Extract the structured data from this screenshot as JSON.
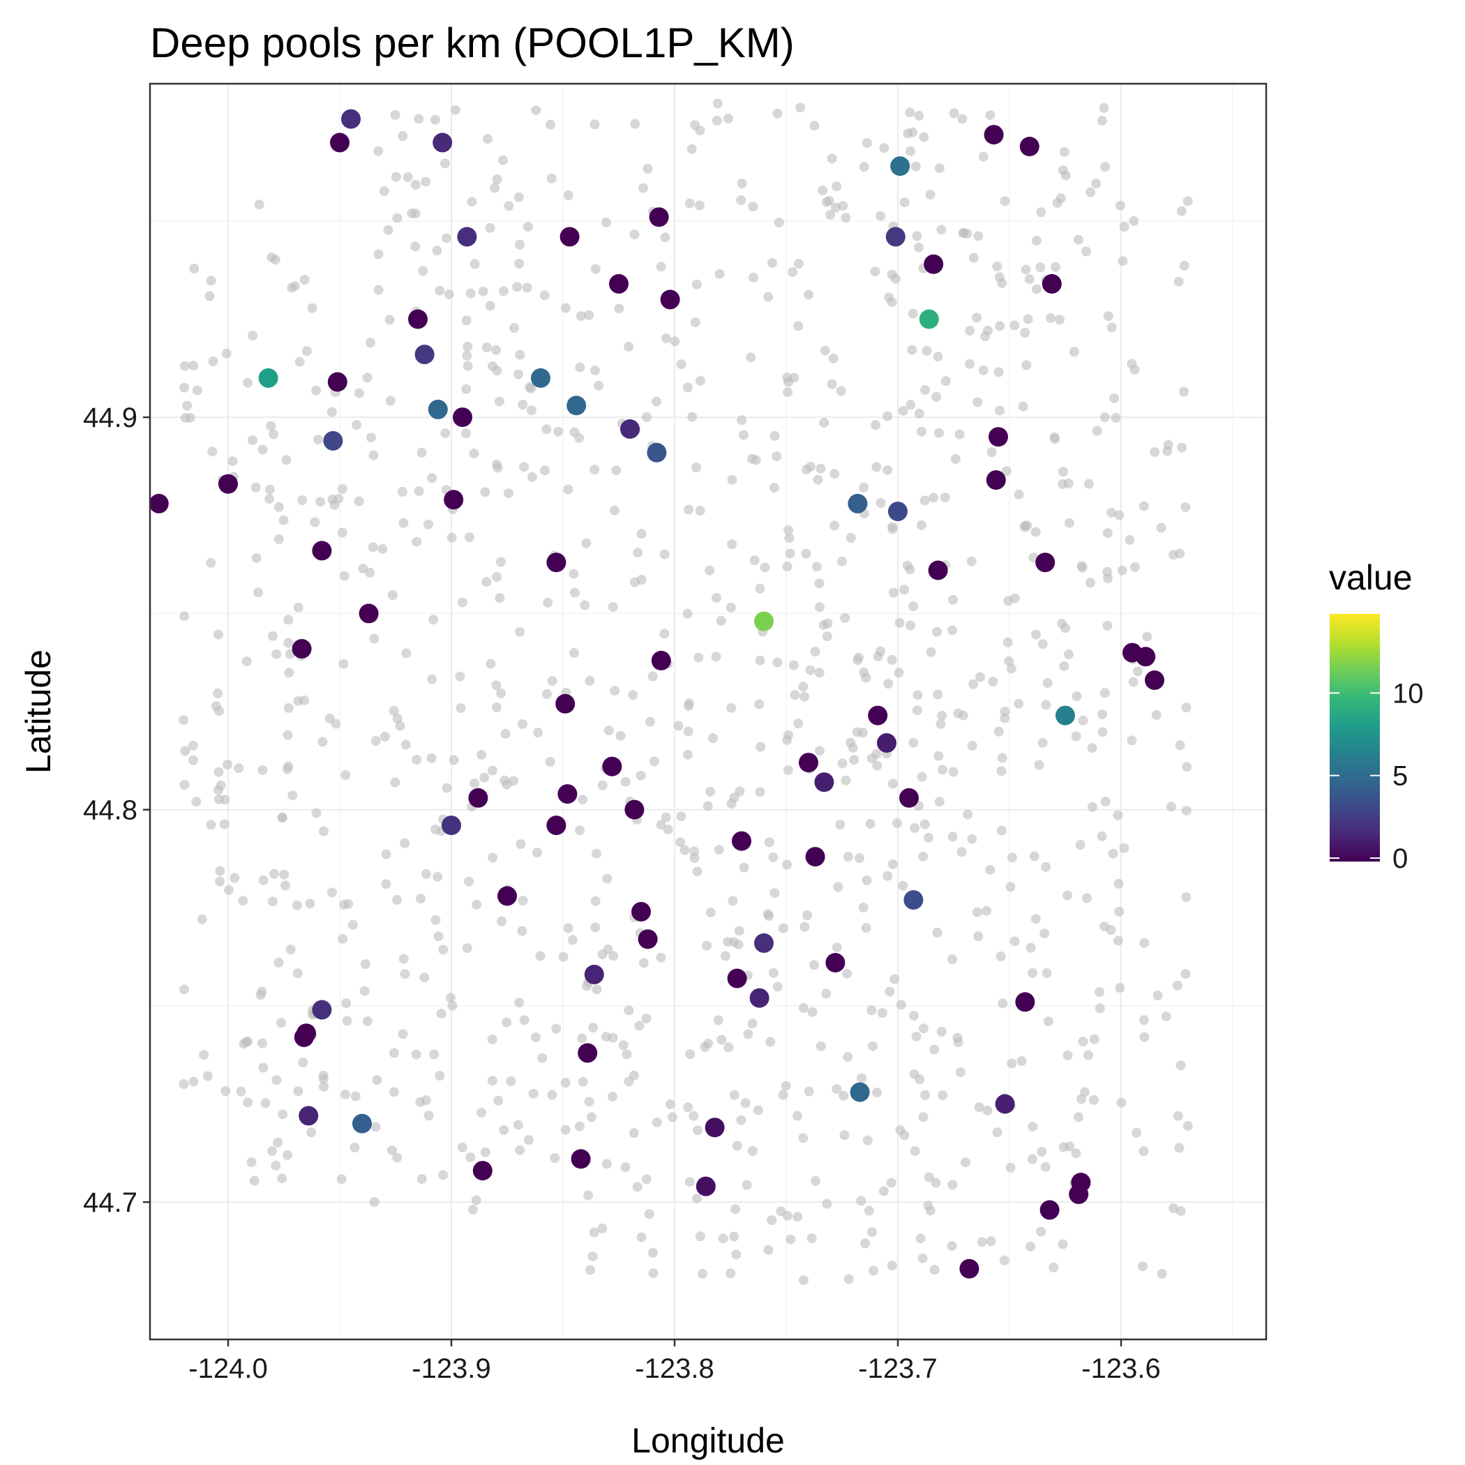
{
  "chart_data": {
    "type": "scatter",
    "title": "Deep pools per km (POOL1P_KM)",
    "xlabel": "Longitude",
    "ylabel": "Latitude",
    "xlim": [
      -124.035,
      -123.535
    ],
    "ylim": [
      44.665,
      44.985
    ],
    "x_ticks": [
      -124.0,
      -123.9,
      -123.8,
      -123.7,
      -123.6
    ],
    "x_tick_labels": [
      "-124.0",
      "-123.9",
      "-123.8",
      "-123.7",
      "-123.6"
    ],
    "y_ticks": [
      44.7,
      44.8,
      44.9
    ],
    "y_tick_labels": [
      "44.7",
      "44.8",
      "44.9"
    ],
    "grid": true,
    "legend": {
      "title": "value",
      "placement": "right",
      "ticks": [
        0,
        5,
        10
      ],
      "tick_labels": [
        "0",
        "5",
        "10"
      ],
      "range": [
        0,
        15
      ],
      "palette": [
        "#440154",
        "#482878",
        "#3E4A89",
        "#31688E",
        "#26828E",
        "#1F9E89",
        "#35B779",
        "#6DCD59",
        "#B4DE2C",
        "#FDE725"
      ]
    },
    "background_points": {
      "description_color": "#BDBDBD",
      "count": 1100,
      "x_range": [
        -124.02,
        -123.57
      ],
      "y_range": [
        44.68,
        44.98
      ]
    },
    "series": [
      {
        "x": [
          -124.031,
          -124.0,
          -123.982,
          -123.967,
          -123.966,
          -123.965,
          -123.958,
          -123.964,
          -123.953,
          -123.951,
          -123.937,
          -123.95,
          -123.958,
          -123.945,
          -123.94,
          -123.915,
          -123.912,
          -123.906,
          -123.904,
          -123.899,
          -123.893,
          -123.9,
          -123.895,
          -123.888,
          -123.886,
          -123.875,
          -123.86,
          -123.853,
          -123.853,
          -123.849,
          -123.848,
          -123.847,
          -123.844,
          -123.842,
          -123.839,
          -123.836,
          -123.828,
          -123.825,
          -123.82,
          -123.818,
          -123.815,
          -123.812,
          -123.808,
          -123.807,
          -123.806,
          -123.802,
          -123.786,
          -123.782,
          -123.772,
          -123.77,
          -123.762,
          -123.76,
          -123.76,
          -123.74,
          -123.737,
          -123.733,
          -123.728,
          -123.718,
          -123.717,
          -123.709,
          -123.705,
          -123.701,
          -123.7,
          -123.699,
          -123.695,
          -123.693,
          -123.686,
          -123.682,
          -123.684,
          -123.657,
          -123.655,
          -123.656,
          -123.652,
          -123.643,
          -123.641,
          -123.634,
          -123.632,
          -123.631,
          -123.625,
          -123.619,
          -123.618,
          -123.595,
          -123.589,
          -123.585,
          -123.668
        ],
        "y": [
          44.878,
          44.883,
          44.91,
          44.841,
          44.742,
          44.743,
          44.866,
          44.722,
          44.894,
          44.909,
          44.85,
          44.97,
          44.749,
          44.976,
          44.72,
          44.925,
          44.916,
          44.902,
          44.97,
          44.879,
          44.946,
          44.796,
          44.9,
          44.803,
          44.708,
          44.778,
          44.91,
          44.863,
          44.796,
          44.827,
          44.804,
          44.946,
          44.903,
          44.711,
          44.738,
          44.758,
          44.811,
          44.934,
          44.897,
          44.8,
          44.774,
          44.767,
          44.891,
          44.951,
          44.838,
          44.93,
          44.704,
          44.719,
          44.757,
          44.792,
          44.752,
          44.848,
          44.766,
          44.812,
          44.788,
          44.807,
          44.761,
          44.878,
          44.728,
          44.824,
          44.817,
          44.946,
          44.876,
          44.964,
          44.803,
          44.777,
          44.925,
          44.861,
          44.939,
          44.972,
          44.895,
          44.884,
          44.725,
          44.751,
          44.969,
          44.863,
          44.698,
          44.934,
          44.824,
          44.702,
          44.705,
          44.84,
          44.839,
          44.833,
          44.683
        ],
        "values": [
          0,
          0,
          8.4,
          0,
          0,
          0,
          0,
          1.5,
          3.2,
          0,
          0,
          0,
          2.0,
          2.0,
          4.5,
          0,
          2.5,
          5.0,
          1.8,
          0,
          2.0,
          2.2,
          0,
          0,
          0,
          0,
          5.0,
          0,
          0,
          0,
          0,
          0,
          5.0,
          0,
          0,
          1.5,
          0,
          0,
          1.8,
          0,
          0,
          0,
          4.0,
          0,
          0,
          0,
          0.6,
          0.6,
          0,
          0,
          1.5,
          12.0,
          2.0,
          0,
          0,
          1.3,
          0,
          4.5,
          5.0,
          0,
          1.2,
          2.5,
          3.3,
          5.5,
          0,
          3.5,
          9.5,
          0,
          0,
          0,
          0,
          0,
          1.3,
          0,
          0,
          0,
          0,
          0,
          6.5,
          0,
          0,
          0,
          0,
          0,
          0
        ]
      }
    ]
  }
}
